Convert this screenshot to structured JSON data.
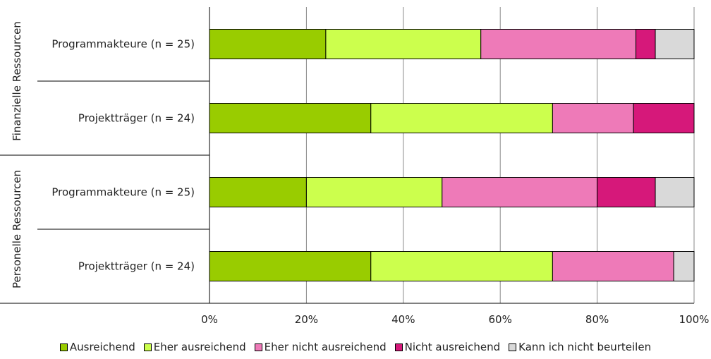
{
  "chart_data": {
    "type": "bar",
    "orientation": "horizontal",
    "stacked": "percent",
    "groups": [
      "Finanzielle Ressourcen",
      "Personelle Ressourcen"
    ],
    "categories": [
      "Programmakteure (n = 25)",
      "Projektträger (n = 24)",
      "Programmakteure (n = 25)",
      "Projektträger (n = 24)"
    ],
    "category_group": [
      0,
      0,
      1,
      1
    ],
    "series": [
      {
        "name": "Ausreichend",
        "color": "#99cc00",
        "values": [
          24,
          33.3,
          20,
          33.3
        ]
      },
      {
        "name": "Eher ausreichend",
        "color": "#ccff4d",
        "values": [
          32,
          37.5,
          28,
          37.5
        ]
      },
      {
        "name": "Eher nicht ausreichend",
        "color": "#ee7ab8",
        "values": [
          32,
          16.7,
          32,
          25
        ]
      },
      {
        "name": "Nicht ausreichend",
        "color": "#d6187a",
        "values": [
          4,
          12.5,
          12,
          0
        ]
      },
      {
        "name": "Kann ich nicht beurteilen",
        "color": "#d9d9d9",
        "values": [
          8,
          0,
          8,
          4.2
        ]
      }
    ],
    "xlim": [
      0,
      100
    ],
    "xticks": [
      "0%",
      "20%",
      "40%",
      "60%",
      "80%",
      "100%"
    ],
    "grid": true,
    "legend": "bottom"
  }
}
